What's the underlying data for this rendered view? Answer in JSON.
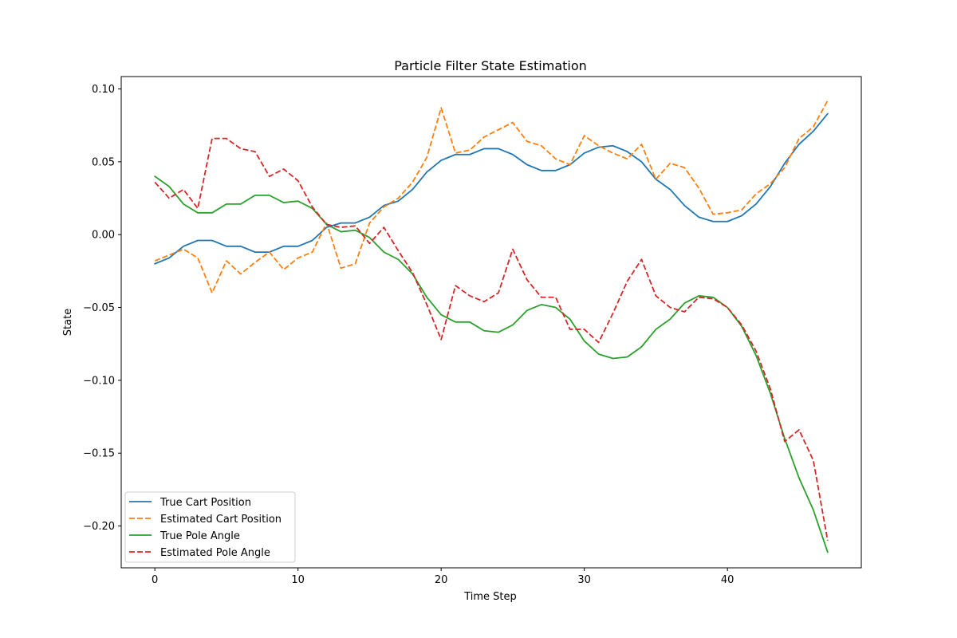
{
  "chart_data": {
    "type": "line",
    "title": "Particle Filter State Estimation",
    "xlabel": "Time Step",
    "ylabel": "State",
    "xlim": [
      -2.35,
      49.35
    ],
    "ylim": [
      -0.2287,
      0.1085
    ],
    "xticks": [
      0,
      10,
      20,
      30,
      40
    ],
    "yticks": [
      -0.2,
      -0.15,
      -0.1,
      -0.05,
      0.0,
      0.05,
      0.1
    ],
    "ytick_labels": [
      "−0.20",
      "−0.15",
      "−0.10",
      "−0.05",
      "0.00",
      "0.05",
      "0.10"
    ],
    "legend_position": "lower-left",
    "grid": false,
    "x": [
      0,
      1,
      2,
      3,
      4,
      5,
      6,
      7,
      8,
      9,
      10,
      11,
      12,
      13,
      14,
      15,
      16,
      17,
      18,
      19,
      20,
      21,
      22,
      23,
      24,
      25,
      26,
      27,
      28,
      29,
      30,
      31,
      32,
      33,
      34,
      35,
      36,
      37,
      38,
      39,
      40,
      41,
      42,
      43,
      44,
      45,
      46,
      47
    ],
    "series": [
      {
        "name": "True Cart Position",
        "color": "#1f77b4",
        "dash": "solid",
        "values": [
          -0.02,
          -0.016,
          -0.008,
          -0.004,
          -0.004,
          -0.008,
          -0.008,
          -0.012,
          -0.012,
          -0.008,
          -0.008,
          -0.004,
          0.005,
          0.008,
          0.008,
          0.012,
          0.02,
          0.023,
          0.031,
          0.043,
          0.051,
          0.055,
          0.055,
          0.059,
          0.059,
          0.055,
          0.048,
          0.044,
          0.044,
          0.048,
          0.056,
          0.06,
          0.061,
          0.057,
          0.05,
          0.038,
          0.031,
          0.02,
          0.012,
          0.009,
          0.009,
          0.013,
          0.021,
          0.033,
          0.049,
          0.062,
          0.071,
          0.083
        ]
      },
      {
        "name": "Estimated Cart Position",
        "color": "#ff7f0e",
        "dash": "dashed",
        "values": [
          -0.018,
          -0.014,
          -0.01,
          -0.016,
          -0.04,
          -0.018,
          -0.027,
          -0.019,
          -0.012,
          -0.024,
          -0.016,
          -0.012,
          0.008,
          -0.023,
          -0.02,
          0.008,
          0.019,
          0.025,
          0.036,
          0.053,
          0.087,
          0.056,
          0.058,
          0.067,
          0.072,
          0.077,
          0.064,
          0.061,
          0.052,
          0.048,
          0.068,
          0.061,
          0.056,
          0.052,
          0.062,
          0.038,
          0.049,
          0.046,
          0.032,
          0.014,
          0.015,
          0.017,
          0.028,
          0.035,
          0.046,
          0.066,
          0.074,
          0.092
        ]
      },
      {
        "name": "True Pole Angle",
        "color": "#2ca02c",
        "dash": "solid",
        "values": [
          0.04,
          0.033,
          0.021,
          0.015,
          0.015,
          0.021,
          0.021,
          0.027,
          0.027,
          0.022,
          0.023,
          0.018,
          0.007,
          0.002,
          0.003,
          -0.002,
          -0.012,
          -0.017,
          -0.027,
          -0.043,
          -0.055,
          -0.06,
          -0.06,
          -0.066,
          -0.067,
          -0.062,
          -0.052,
          -0.048,
          -0.05,
          -0.058,
          -0.073,
          -0.082,
          -0.085,
          -0.084,
          -0.077,
          -0.065,
          -0.058,
          -0.047,
          -0.042,
          -0.043,
          -0.05,
          -0.063,
          -0.083,
          -0.109,
          -0.14,
          -0.167,
          -0.189,
          -0.218
        ]
      },
      {
        "name": "Estimated Pole Angle",
        "color": "#d62728",
        "dash": "dashed",
        "values": [
          0.036,
          0.025,
          0.031,
          0.018,
          0.066,
          0.066,
          0.059,
          0.057,
          0.04,
          0.045,
          0.037,
          0.019,
          0.007,
          0.005,
          0.006,
          -0.006,
          0.005,
          -0.011,
          -0.026,
          -0.048,
          -0.072,
          -0.035,
          -0.042,
          -0.046,
          -0.04,
          -0.01,
          -0.031,
          -0.043,
          -0.043,
          -0.065,
          -0.065,
          -0.074,
          -0.054,
          -0.032,
          -0.017,
          -0.042,
          -0.05,
          -0.053,
          -0.043,
          -0.044,
          -0.05,
          -0.062,
          -0.08,
          -0.106,
          -0.142,
          -0.134,
          -0.155,
          -0.21
        ]
      }
    ]
  }
}
